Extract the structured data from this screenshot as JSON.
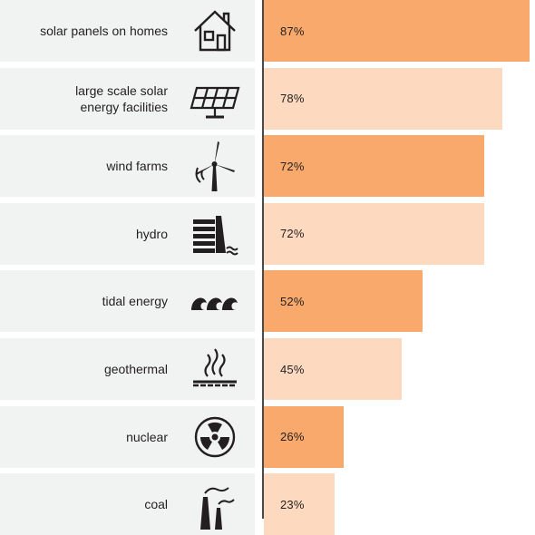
{
  "chart_data": {
    "type": "bar",
    "orientation": "horizontal",
    "categories": [
      "solar panels on homes",
      "large scale solar\nenergy facilities",
      "wind farms",
      "hydro",
      "tidal energy",
      "geothermal",
      "nuclear",
      "coal"
    ],
    "values": [
      87,
      78,
      72,
      72,
      52,
      45,
      26,
      23
    ],
    "value_labels": [
      "87%",
      "78%",
      "72%",
      "72%",
      "52%",
      "45%",
      "26%",
      "23%"
    ],
    "icons": [
      "house-icon",
      "solar-panel-icon",
      "wind-turbine-icon",
      "dam-icon",
      "waves-icon",
      "geothermal-icon",
      "radiation-icon",
      "factory-chimney-icon"
    ],
    "bar_colors": [
      "#f9a96b",
      "#fcd9bf",
      "#f9a96b",
      "#fcd9bf",
      "#f9a96b",
      "#fcd9bf",
      "#f9a96b",
      "#fcd9bf"
    ],
    "label_background": "#f1f2f2",
    "text_color": "#231f20",
    "axis_color": "#4a4a4a",
    "xlim": [
      0,
      100
    ],
    "grid": false,
    "legend": "none"
  }
}
